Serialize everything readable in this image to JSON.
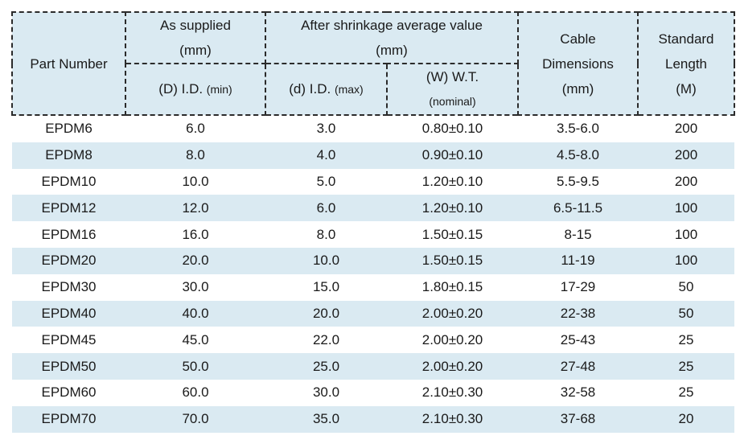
{
  "header": {
    "part_number": "Part Number",
    "as_supplied_line1": "As supplied",
    "as_supplied_line2": "(mm)",
    "after_shrink_line1": "After shrinkage average value",
    "after_shrink_line2": "(mm)",
    "cable_line1": "Cable",
    "cable_line2": "Dimensions",
    "cable_line3": "(mm)",
    "std_line1": "Standard",
    "std_line2": "Length",
    "std_line3": "(M)",
    "d_id_main": "(D) I.D. ",
    "d_id_sub": "(min)",
    "sd_id_main": "(d) I.D. ",
    "sd_id_sub": "(max)",
    "wt_line1": "(W) W.T.",
    "wt_line2": "(nominal)"
  },
  "rows": [
    [
      "EPDM6",
      "6.0",
      "3.0",
      "0.80±0.10",
      "3.5-6.0",
      "200"
    ],
    [
      "EPDM8",
      "8.0",
      "4.0",
      "0.90±0.10",
      "4.5-8.0",
      "200"
    ],
    [
      "EPDM10",
      "10.0",
      "5.0",
      "1.20±0.10",
      "5.5-9.5",
      "200"
    ],
    [
      "EPDM12",
      "12.0",
      "6.0",
      "1.20±0.10",
      "6.5-11.5",
      "100"
    ],
    [
      "EPDM16",
      "16.0",
      "8.0",
      "1.50±0.15",
      "8-15",
      "100"
    ],
    [
      "EPDM20",
      "20.0",
      "10.0",
      "1.50±0.15",
      "11-19",
      "100"
    ],
    [
      "EPDM30",
      "30.0",
      "15.0",
      "1.80±0.15",
      "17-29",
      "50"
    ],
    [
      "EPDM40",
      "40.0",
      "20.0",
      "2.00±0.20",
      "22-38",
      "50"
    ],
    [
      "EPDM45",
      "45.0",
      "22.0",
      "2.00±0.20",
      "25-43",
      "25"
    ],
    [
      "EPDM50",
      "50.0",
      "25.0",
      "2.00±0.20",
      "27-48",
      "25"
    ],
    [
      "EPDM60",
      "60.0",
      "30.0",
      "2.10±0.30",
      "32-58",
      "25"
    ],
    [
      "EPDM70",
      "70.0",
      "35.0",
      "2.10±0.30",
      "37-68",
      "20"
    ]
  ]
}
